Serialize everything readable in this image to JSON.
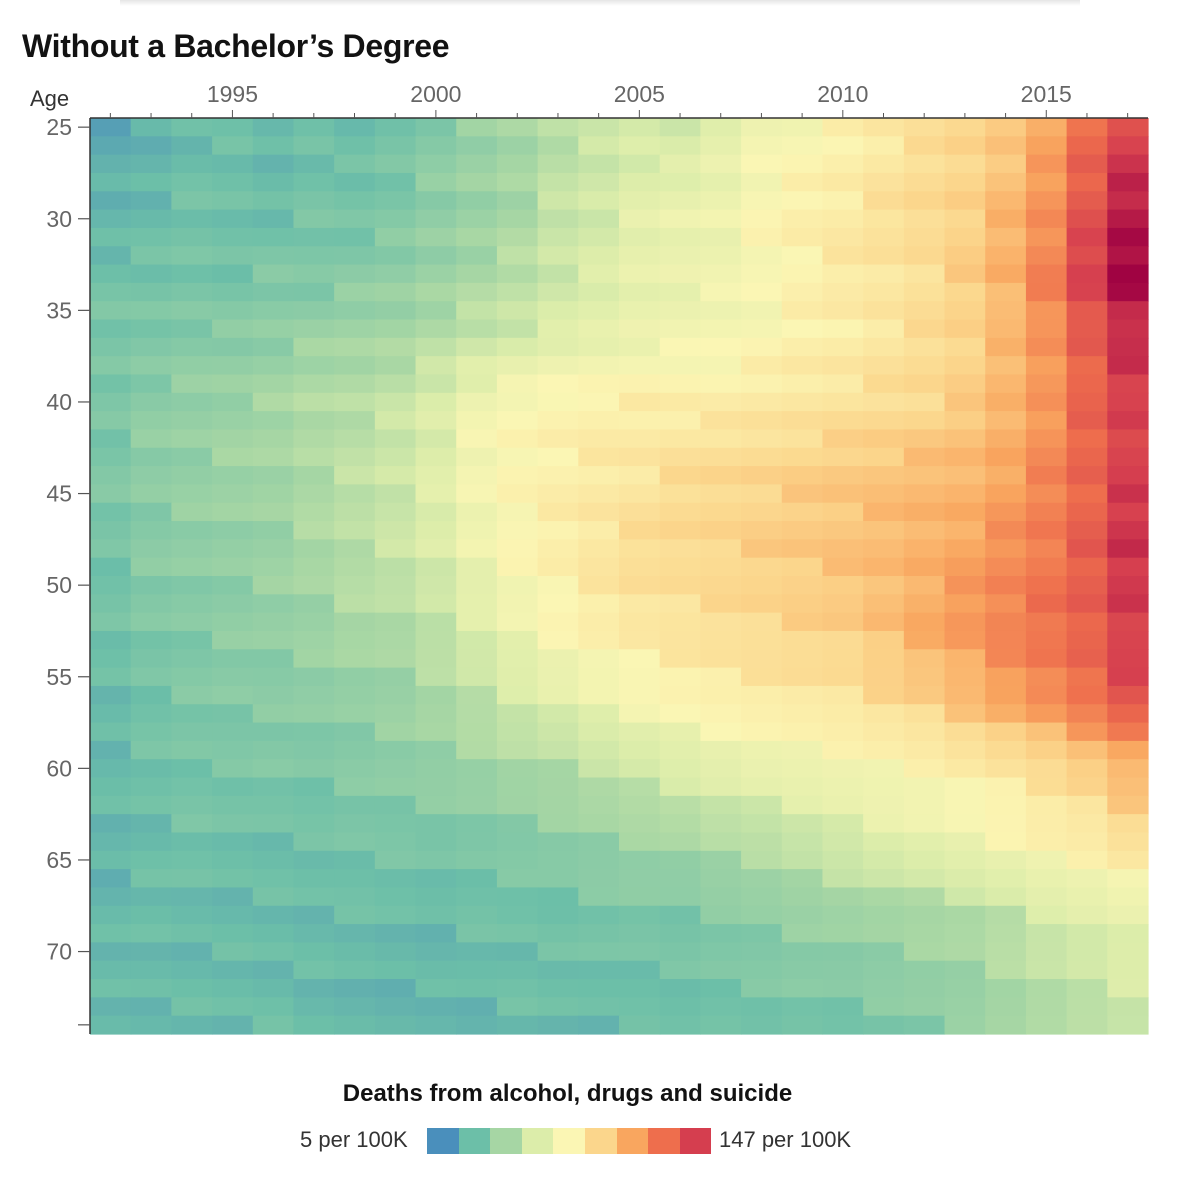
{
  "title": "Without a Bachelor’s Degree",
  "legend": {
    "title": "Deaths from alcohol, drugs and suicide",
    "min_label": "5 per 100K",
    "max_label": "147 per 100K",
    "colors": [
      "#4a8fbc",
      "#6cbfa8",
      "#a6d6a4",
      "#dcedaa",
      "#fbf6b4",
      "#fbd68c",
      "#f9a65f",
      "#ee6e4d",
      "#d53e4f"
    ]
  },
  "chart_data": {
    "type": "heatmap",
    "title": "Without a Bachelor’s Degree",
    "xlabel": "",
    "ylabel": "Age",
    "x_ticks": [
      1995,
      2000,
      2005,
      2010,
      2015
    ],
    "y_ticks": [
      25,
      30,
      35,
      40,
      45,
      50,
      55,
      60,
      65,
      70
    ],
    "x_range": [
      1992,
      2017
    ],
    "y_range": [
      25,
      74
    ],
    "value_range": [
      5,
      147
    ],
    "value_unit": "per 100K",
    "grid": false,
    "legend_position": "bottom",
    "colors": [
      "#4a8fbc",
      "#6cbfa8",
      "#a6d6a4",
      "#dcedaa",
      "#fbf6b4",
      "#fbd68c",
      "#f9a65f",
      "#ee6e4d",
      "#d53e4f",
      "#9e0142"
    ],
    "anchors": [
      {
        "age": 25,
        "values": [
          14,
          16,
          20,
          20,
          18,
          22,
          20,
          24,
          28,
          32,
          36,
          42,
          46,
          50,
          48,
          56,
          64,
          66,
          70,
          74,
          78,
          82,
          88,
          98,
          116,
          128
        ]
      },
      {
        "age": 30,
        "values": [
          18,
          20,
          22,
          22,
          22,
          24,
          24,
          26,
          30,
          34,
          38,
          46,
          50,
          56,
          60,
          62,
          68,
          72,
          74,
          78,
          82,
          86,
          94,
          106,
          124,
          140
        ]
      },
      {
        "age": 33,
        "values": [
          22,
          22,
          24,
          24,
          26,
          26,
          28,
          30,
          34,
          38,
          42,
          48,
          52,
          58,
          60,
          62,
          66,
          70,
          74,
          76,
          80,
          86,
          96,
          110,
          130,
          147
        ]
      },
      {
        "age": 36,
        "values": [
          24,
          26,
          28,
          28,
          30,
          32,
          34,
          36,
          40,
          44,
          48,
          52,
          56,
          60,
          62,
          64,
          66,
          70,
          72,
          76,
          80,
          84,
          92,
          104,
          122,
          136
        ]
      },
      {
        "age": 40,
        "values": [
          26,
          30,
          32,
          34,
          36,
          40,
          42,
          46,
          52,
          62,
          66,
          70,
          72,
          72,
          72,
          72,
          74,
          76,
          78,
          80,
          82,
          86,
          94,
          104,
          118,
          130
        ]
      },
      {
        "age": 44,
        "values": [
          26,
          30,
          32,
          34,
          36,
          40,
          44,
          48,
          54,
          64,
          70,
          72,
          74,
          76,
          80,
          82,
          84,
          86,
          88,
          90,
          92,
          94,
          100,
          108,
          118,
          130
        ]
      },
      {
        "age": 48,
        "values": [
          24,
          28,
          30,
          32,
          34,
          38,
          42,
          46,
          52,
          62,
          68,
          72,
          76,
          80,
          82,
          84,
          86,
          88,
          90,
          92,
          96,
          100,
          106,
          112,
          120,
          134
        ]
      },
      {
        "age": 52,
        "values": [
          22,
          26,
          28,
          30,
          32,
          34,
          38,
          40,
          46,
          54,
          62,
          68,
          72,
          76,
          78,
          80,
          82,
          84,
          86,
          92,
          98,
          104,
          110,
          114,
          120,
          132
        ]
      },
      {
        "age": 56,
        "values": [
          20,
          24,
          26,
          28,
          28,
          30,
          32,
          34,
          38,
          44,
          50,
          56,
          62,
          66,
          70,
          72,
          74,
          76,
          78,
          82,
          86,
          92,
          100,
          108,
          116,
          126
        ]
      },
      {
        "age": 60,
        "values": [
          20,
          22,
          24,
          24,
          26,
          26,
          28,
          30,
          32,
          34,
          38,
          40,
          44,
          48,
          52,
          56,
          60,
          62,
          64,
          66,
          68,
          72,
          76,
          80,
          86,
          94
        ]
      },
      {
        "age": 64,
        "values": [
          18,
          20,
          22,
          22,
          22,
          22,
          24,
          24,
          24,
          26,
          28,
          30,
          32,
          34,
          36,
          40,
          42,
          46,
          50,
          54,
          58,
          62,
          66,
          70,
          72,
          78
        ]
      },
      {
        "age": 68,
        "values": [
          18,
          20,
          20,
          20,
          20,
          20,
          20,
          20,
          20,
          22,
          22,
          22,
          24,
          26,
          26,
          28,
          30,
          32,
          34,
          36,
          38,
          40,
          44,
          50,
          54,
          58
        ]
      },
      {
        "age": 74,
        "values": [
          20,
          20,
          20,
          20,
          20,
          18,
          18,
          18,
          18,
          18,
          20,
          20,
          20,
          20,
          20,
          22,
          22,
          24,
          24,
          26,
          28,
          30,
          34,
          38,
          42,
          46
        ]
      }
    ]
  }
}
